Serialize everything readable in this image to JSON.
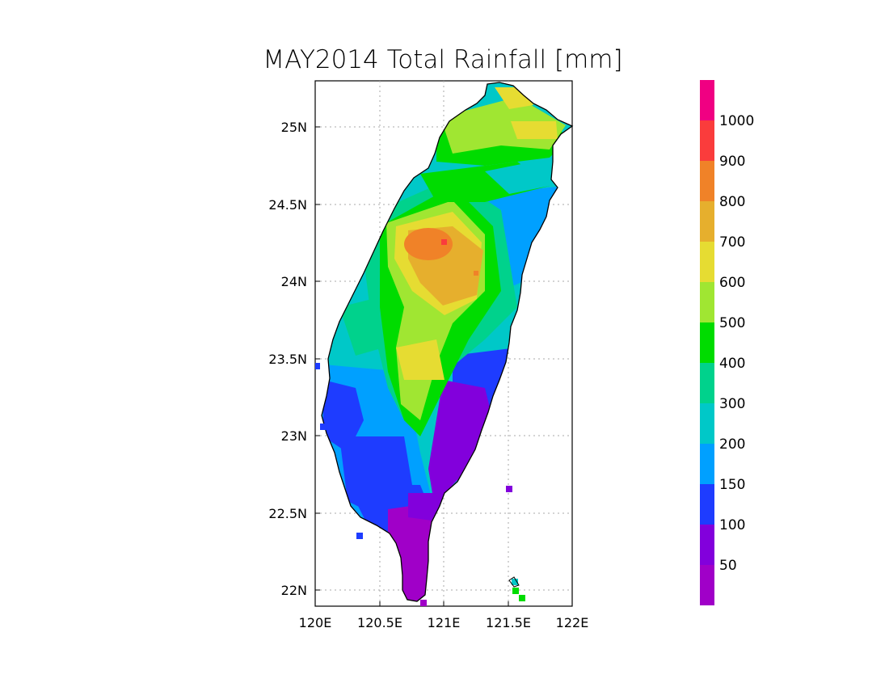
{
  "title": "MAY2014 Total Rainfall [mm]",
  "map": {
    "region": "Taiwan",
    "lon_range": [
      120,
      122
    ],
    "lat_range": [
      21.9,
      25.3
    ],
    "x_ticks": [
      "120E",
      "120.5E",
      "121E",
      "121.5E",
      "122E"
    ],
    "y_ticks": [
      "22N",
      "22.5N",
      "23N",
      "23.5N",
      "24N",
      "24.5N",
      "25N"
    ],
    "grid": "dotted gridlines at 0.5 degree intervals"
  },
  "colorbar": {
    "labels": [
      "50",
      "100",
      "150",
      "200",
      "300",
      "400",
      "500",
      "600",
      "700",
      "800",
      "900",
      "1000"
    ],
    "colors": [
      "#a000c8",
      "#8200dc",
      "#1e3cff",
      "#00a0ff",
      "#00c8c8",
      "#00d28c",
      "#00dc00",
      "#a0e632",
      "#e6dc32",
      "#e6af2d",
      "#f08228",
      "#fa3c3c",
      "#f00082"
    ]
  },
  "rain_zones": {
    "north_tip": "500-700",
    "central_mountains_peak": "800-1000",
    "central_mountains": "500-800",
    "west_coast": "200-400",
    "southwest_plain": "100-200",
    "southeast_and_south_tip": "50-100",
    "east_coast": "150-300"
  }
}
